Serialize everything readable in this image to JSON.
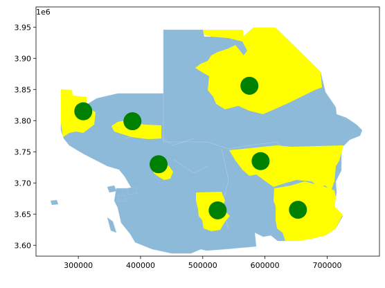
{
  "chart_data": {
    "type": "scatter",
    "title": "",
    "xlabel": "",
    "ylabel": "",
    "x_offset_label": "",
    "y_offset_label": "1e6",
    "xlim": [
      232000,
      784000
    ],
    "ylim": [
      3.5825,
      3.9825
    ],
    "x_ticks": [
      300000,
      400000,
      500000,
      600000,
      700000
    ],
    "x_tick_labels": [
      "300000",
      "400000",
      "500000",
      "600000",
      "700000"
    ],
    "y_ticks": [
      3.6,
      3.65,
      3.7,
      3.75,
      3.8,
      3.85,
      3.9,
      3.95
    ],
    "y_tick_labels": [
      "3.60",
      "3.65",
      "3.70",
      "3.75",
      "3.80",
      "3.85",
      "3.90",
      "3.95"
    ],
    "layers": {
      "base_color": "#8ebad9",
      "highlight_color": "#ffff00",
      "point_color": "#008000"
    },
    "points": [
      {
        "x": 308000,
        "y": 3.815
      },
      {
        "x": 387000,
        "y": 3.799
      },
      {
        "x": 429000,
        "y": 3.73
      },
      {
        "x": 575000,
        "y": 3.856
      },
      {
        "x": 593000,
        "y": 3.735
      },
      {
        "x": 524000,
        "y": 3.656
      },
      {
        "x": 653000,
        "y": 3.657
      }
    ]
  }
}
